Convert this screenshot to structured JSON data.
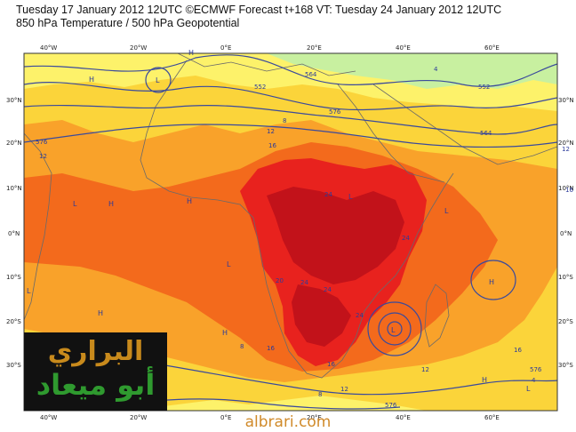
{
  "header": {
    "line1": "Tuesday 17 January 2012 12UTC ©ECMWF Forecast t+168 VT: Tuesday 24 January 2012 12UTC",
    "line2": "850 hPa Temperature / 500 hPa Geopotential"
  },
  "colors": {
    "temp_lt_4": "#c8f0a0",
    "temp_4_8": "#fdf26a",
    "temp_8_12": "#fbd43a",
    "temp_12_16": "#f9a22a",
    "temp_16_20": "#f36a1c",
    "temp_20_24": "#e8221e",
    "temp_gt_24": "#c2121a",
    "contour": "#3a4a9c",
    "logo_bg": "#111111",
    "logo_line1": "#c88a1c",
    "logo_line2": "#2f9a2f",
    "website": "#d08a2a"
  },
  "axes": {
    "lon_top": [
      "40°W",
      "20°W",
      "0°E",
      "20°E",
      "40°E",
      "60°E"
    ],
    "lon_bottom": [
      "40°W",
      "20°W",
      "0°E",
      "20°E",
      "40°E",
      "60°E"
    ],
    "lat_left": [
      "30°N",
      "20°N",
      "10°N",
      "0°N",
      "10°S",
      "20°S",
      "30°S"
    ],
    "lat_right": [
      "30°N",
      "20°N",
      "10°N",
      "0°N",
      "10°S",
      "20°S",
      "30°S"
    ]
  },
  "contour_labels": [
    "552",
    "564",
    "576",
    "576",
    "552",
    "564",
    "576",
    "576"
  ],
  "isotherm_labels": [
    "12",
    "16",
    "12",
    "8",
    "4",
    "12",
    "16",
    "24",
    "24",
    "20",
    "24",
    "24",
    "24",
    "16",
    "16",
    "12",
    "12",
    "8",
    "4",
    "16",
    "8"
  ],
  "pressure_labels": [
    "H",
    "L",
    "H",
    "L",
    "H",
    "L",
    "H",
    "H",
    "L",
    "H",
    "L",
    "L",
    "H",
    "L",
    "H",
    "L"
  ],
  "logo": {
    "line1": "البراري",
    "line2": "أبو ميعاد"
  },
  "website": "albrari.com"
}
